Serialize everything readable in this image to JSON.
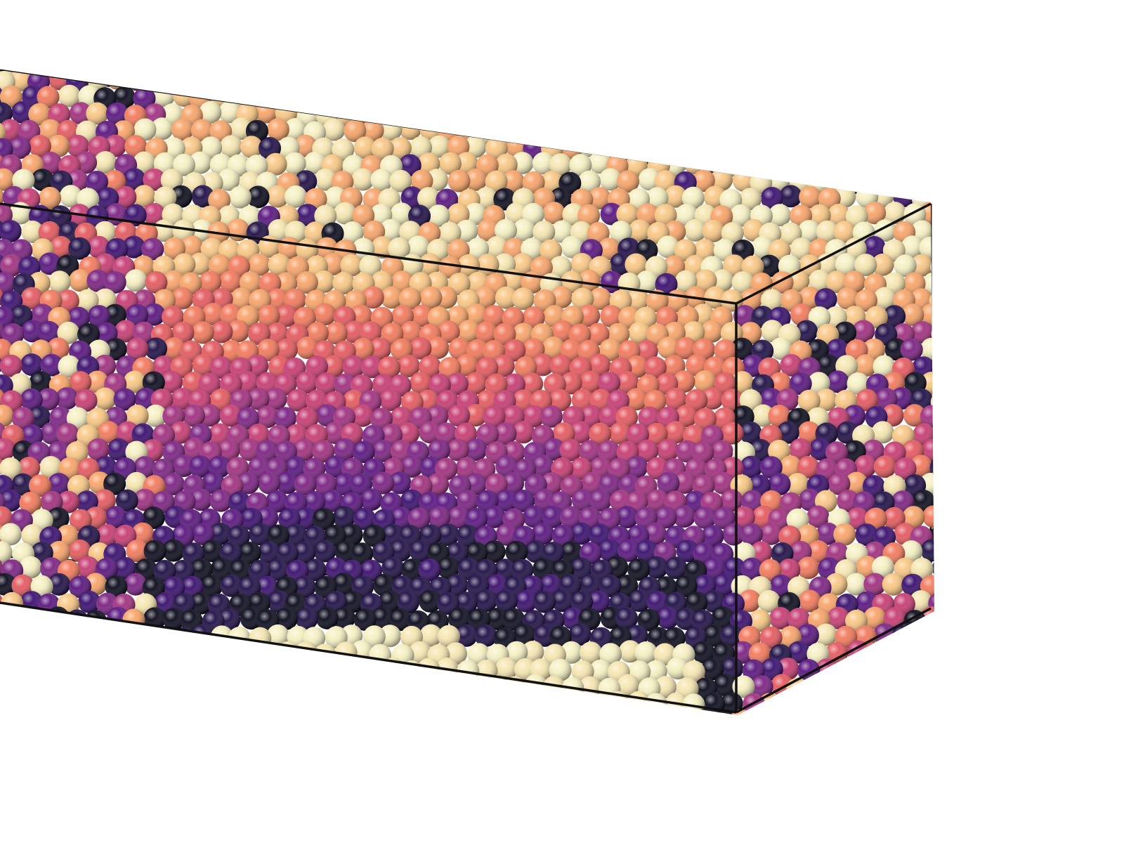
{
  "scene": {
    "subject": "atomic-particle-simulation-box",
    "background_color": "#ffffff",
    "box_edge_color": "#111111",
    "colormap": "magma",
    "palette": [
      "#0b0a1c",
      "#1f0f46",
      "#3a0f6e",
      "#5a167f",
      "#7c2383",
      "#a1307f",
      "#c73d73",
      "#e45a5f",
      "#f27a5c",
      "#f8a469",
      "#f9c784",
      "#f6e6b0",
      "#f6f0c2"
    ]
  }
}
